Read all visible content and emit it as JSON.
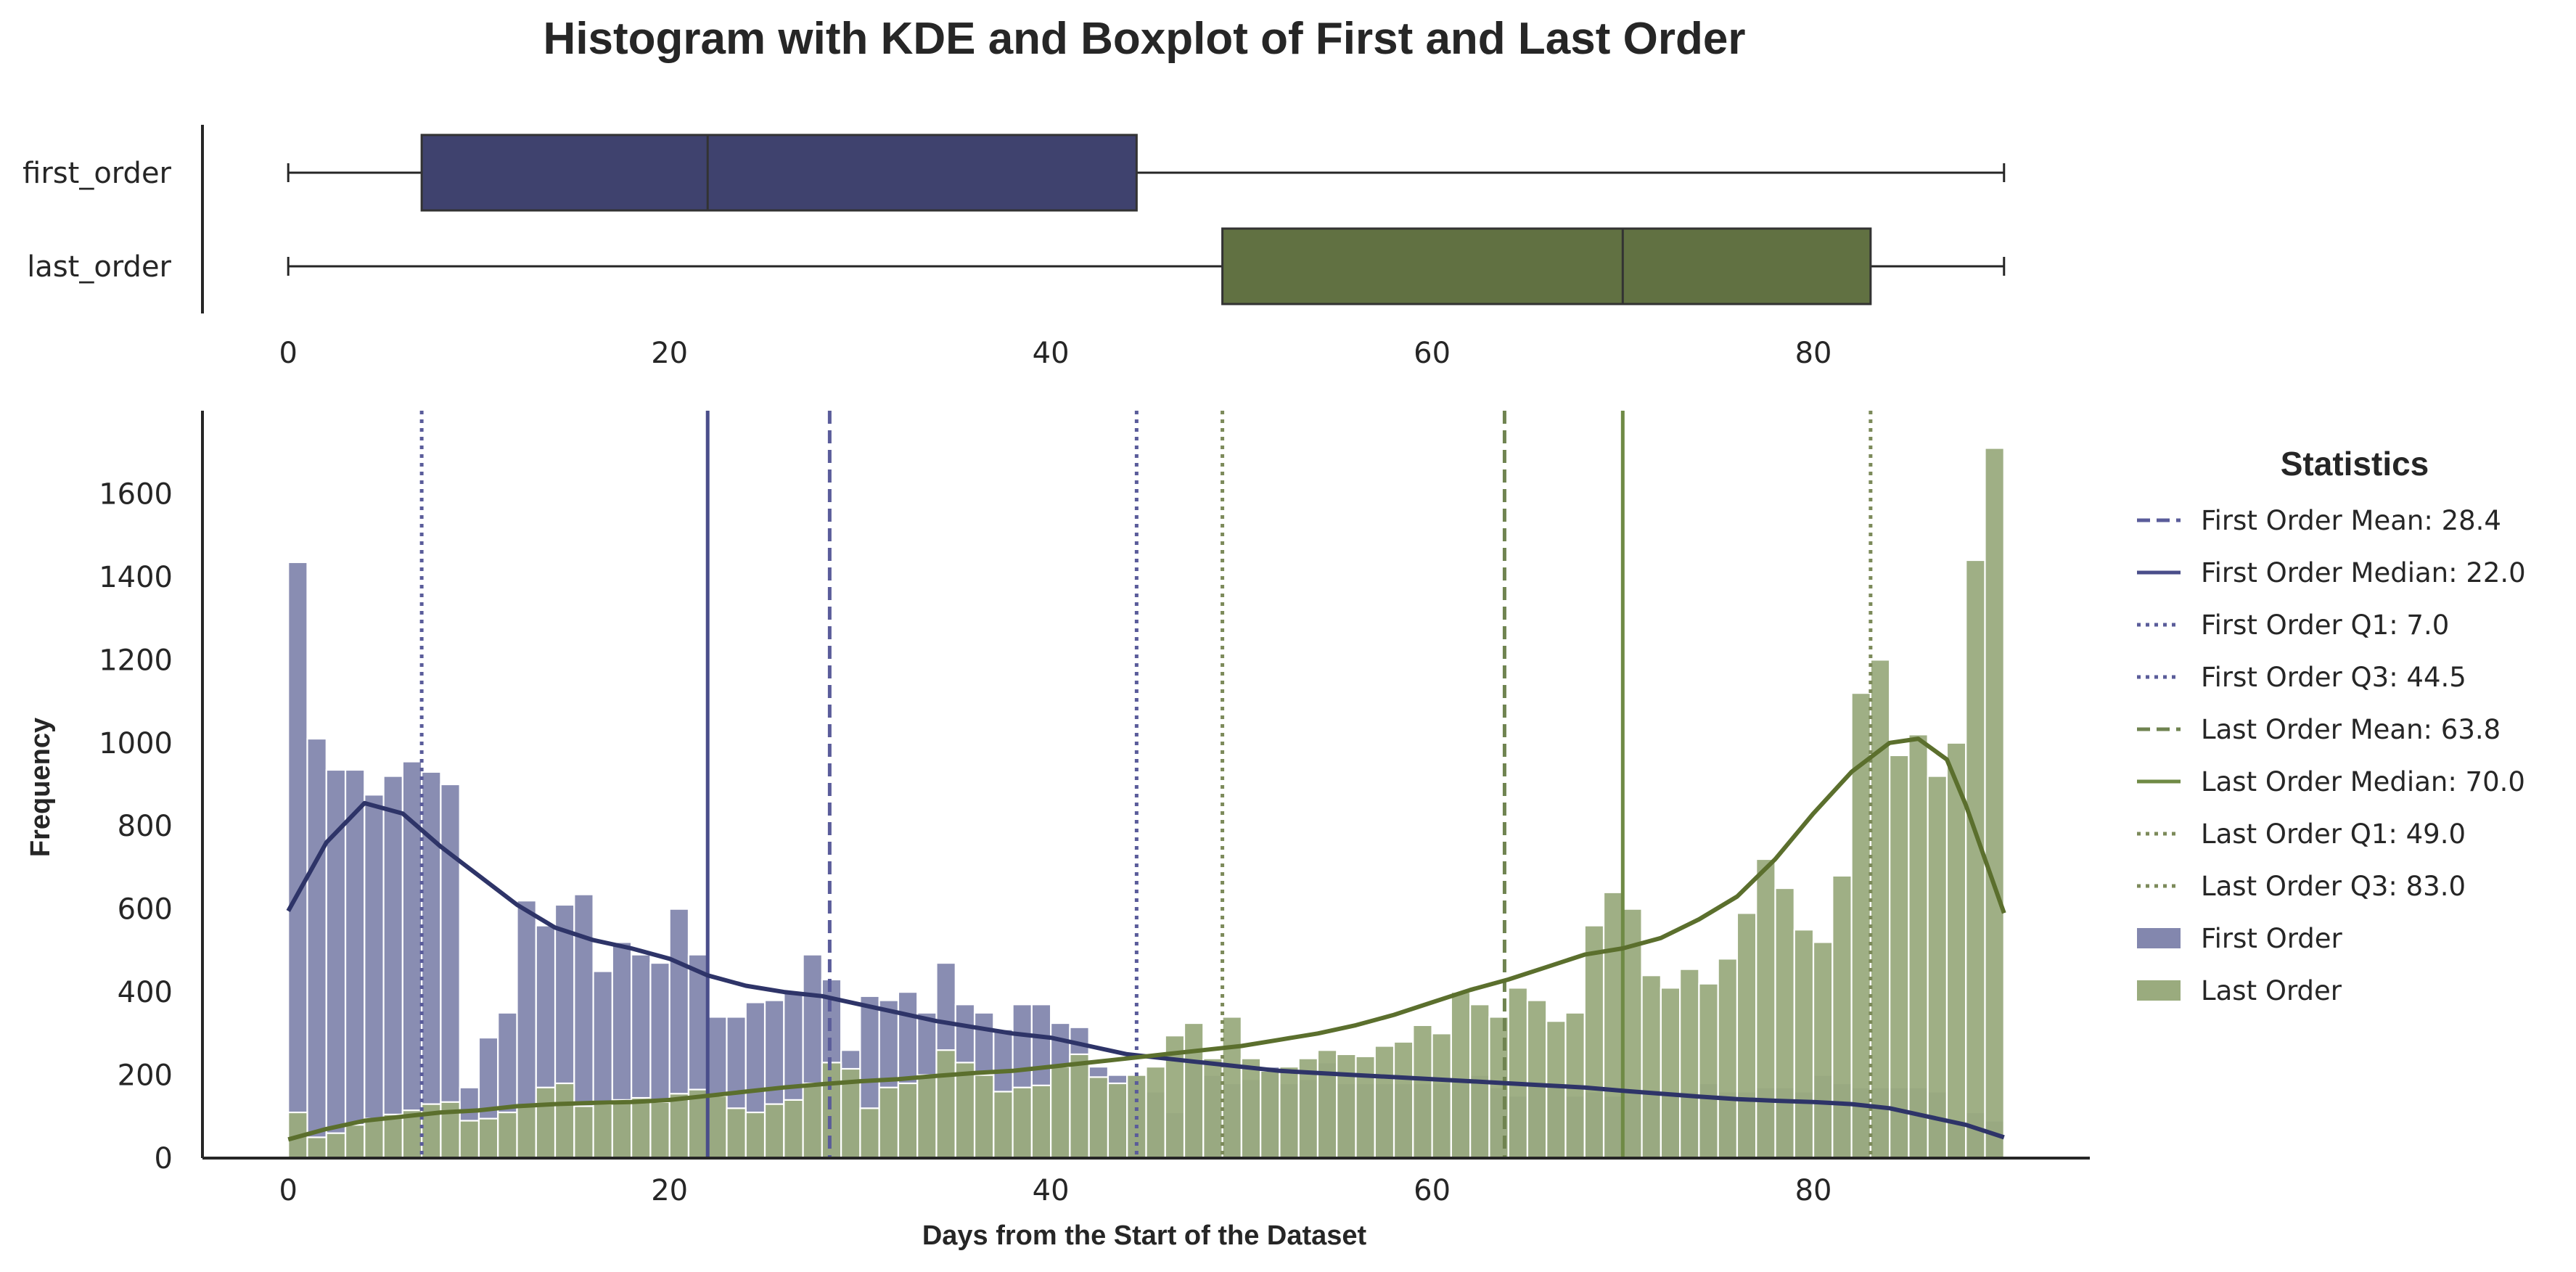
{
  "chart_data": {
    "type": "histogram",
    "title": "Histogram with KDE and Boxplot of First and Last Order",
    "xlabel": "Days from the Start of the Dataset",
    "ylabel": "Frequency",
    "xlim": [
      -4.5,
      94.5
    ],
    "ylim": [
      0,
      1800
    ],
    "x_ticks": [
      0,
      20,
      40,
      60,
      80
    ],
    "y_ticks": [
      0,
      200,
      400,
      600,
      800,
      1000,
      1200,
      1400,
      1600
    ],
    "boxplot_categories": [
      "first_order",
      "last_order"
    ],
    "bin_width": 1,
    "bin_start": 0,
    "series": [
      {
        "name": "First Order",
        "color": "#8387ae",
        "kde_color": "#2e3468",
        "counts": [
          1435,
          1010,
          935,
          935,
          875,
          920,
          955,
          930,
          900,
          170,
          290,
          350,
          620,
          560,
          610,
          635,
          450,
          520,
          490,
          470,
          600,
          490,
          340,
          340,
          375,
          380,
          400,
          490,
          430,
          260,
          390,
          380,
          400,
          350,
          470,
          370,
          350,
          310,
          370,
          370,
          325,
          315,
          220,
          200,
          200,
          160,
          110,
          230,
          200,
          180,
          190,
          220,
          180,
          190,
          230,
          180,
          180,
          180,
          180,
          180,
          180,
          190,
          200,
          170,
          150,
          180,
          170,
          150,
          160,
          150,
          160,
          165,
          160,
          160,
          180,
          160,
          160,
          170,
          170,
          160,
          200,
          180,
          170,
          170,
          170,
          170,
          160,
          90,
          110,
          90
        ],
        "kde": [
          [
            0,
            595
          ],
          [
            2,
            760
          ],
          [
            4,
            855
          ],
          [
            6,
            830
          ],
          [
            8,
            750
          ],
          [
            10,
            680
          ],
          [
            12,
            610
          ],
          [
            14,
            555
          ],
          [
            16,
            525
          ],
          [
            18,
            505
          ],
          [
            20,
            480
          ],
          [
            22,
            440
          ],
          [
            24,
            415
          ],
          [
            26,
            400
          ],
          [
            28,
            390
          ],
          [
            30,
            370
          ],
          [
            32,
            350
          ],
          [
            34,
            330
          ],
          [
            36,
            315
          ],
          [
            38,
            300
          ],
          [
            40,
            290
          ],
          [
            42,
            270
          ],
          [
            44,
            250
          ],
          [
            46,
            240
          ],
          [
            48,
            230
          ],
          [
            50,
            220
          ],
          [
            52,
            210
          ],
          [
            54,
            205
          ],
          [
            56,
            200
          ],
          [
            58,
            195
          ],
          [
            60,
            190
          ],
          [
            62,
            185
          ],
          [
            64,
            180
          ],
          [
            66,
            175
          ],
          [
            68,
            170
          ],
          [
            70,
            162
          ],
          [
            72,
            155
          ],
          [
            74,
            148
          ],
          [
            76,
            142
          ],
          [
            78,
            138
          ],
          [
            80,
            135
          ],
          [
            82,
            130
          ],
          [
            84,
            120
          ],
          [
            86,
            100
          ],
          [
            88,
            80
          ],
          [
            90,
            50
          ]
        ],
        "box": {
          "min": 0,
          "q1": 7.0,
          "median": 22.0,
          "q3": 44.5,
          "max": 90
        },
        "stats": {
          "mean": 28.4,
          "median": 22.0,
          "q1": 7.0,
          "q3": 44.5
        }
      },
      {
        "name": "Last Order",
        "color": "#9aab7e",
        "kde_color": "#5b6f2d",
        "counts": [
          110,
          50,
          60,
          80,
          95,
          105,
          115,
          130,
          135,
          90,
          95,
          110,
          125,
          170,
          180,
          125,
          130,
          140,
          145,
          135,
          155,
          165,
          150,
          120,
          110,
          130,
          140,
          180,
          230,
          215,
          120,
          170,
          180,
          200,
          260,
          230,
          200,
          160,
          170,
          175,
          220,
          250,
          195,
          180,
          200,
          220,
          295,
          325,
          240,
          340,
          240,
          210,
          220,
          240,
          260,
          250,
          245,
          270,
          280,
          320,
          300,
          400,
          370,
          340,
          410,
          380,
          330,
          350,
          560,
          640,
          600,
          440,
          410,
          455,
          420,
          480,
          590,
          720,
          650,
          550,
          520,
          680,
          1120,
          1200,
          970,
          1020,
          920,
          1000,
          1440,
          1710
        ],
        "kde": [
          [
            0,
            45
          ],
          [
            2,
            70
          ],
          [
            4,
            90
          ],
          [
            6,
            100
          ],
          [
            8,
            110
          ],
          [
            10,
            115
          ],
          [
            12,
            125
          ],
          [
            14,
            130
          ],
          [
            16,
            133
          ],
          [
            18,
            135
          ],
          [
            20,
            140
          ],
          [
            22,
            150
          ],
          [
            24,
            160
          ],
          [
            26,
            170
          ],
          [
            28,
            178
          ],
          [
            30,
            185
          ],
          [
            32,
            190
          ],
          [
            34,
            198
          ],
          [
            36,
            205
          ],
          [
            38,
            210
          ],
          [
            40,
            220
          ],
          [
            42,
            230
          ],
          [
            44,
            240
          ],
          [
            46,
            250
          ],
          [
            48,
            260
          ],
          [
            50,
            270
          ],
          [
            52,
            285
          ],
          [
            54,
            300
          ],
          [
            56,
            320
          ],
          [
            58,
            345
          ],
          [
            60,
            375
          ],
          [
            62,
            405
          ],
          [
            64,
            430
          ],
          [
            66,
            460
          ],
          [
            68,
            490
          ],
          [
            70,
            505
          ],
          [
            72,
            530
          ],
          [
            74,
            575
          ],
          [
            76,
            630
          ],
          [
            78,
            720
          ],
          [
            80,
            830
          ],
          [
            82,
            930
          ],
          [
            84,
            1000
          ],
          [
            85.5,
            1010
          ],
          [
            87,
            960
          ],
          [
            88,
            850
          ],
          [
            89,
            720
          ],
          [
            90,
            590
          ]
        ],
        "box": {
          "min": 0,
          "q1": 49.0,
          "median": 70.0,
          "q3": 83.0,
          "max": 90
        },
        "stats": {
          "mean": 63.8,
          "median": 70.0,
          "q1": 49.0,
          "q3": 83.0
        }
      }
    ],
    "box_colors": {
      "first_order": "#3f426e",
      "last_order": "#617142"
    },
    "stat_lines": [
      {
        "series": "first",
        "stat": "mean",
        "value": 28.4,
        "style": "dashed",
        "color": "#5a5c9a"
      },
      {
        "series": "first",
        "stat": "median",
        "value": 22.0,
        "style": "solid",
        "color": "#4a4e8a"
      },
      {
        "series": "first",
        "stat": "q1",
        "value": 7.0,
        "style": "dotted",
        "color": "#5a5c9a"
      },
      {
        "series": "first",
        "stat": "q3",
        "value": 44.5,
        "style": "dotted",
        "color": "#5a5c9a"
      },
      {
        "series": "last",
        "stat": "mean",
        "value": 63.8,
        "style": "dashed",
        "color": "#6f8350"
      },
      {
        "series": "last",
        "stat": "median",
        "value": 70.0,
        "style": "solid",
        "color": "#6f8a45"
      },
      {
        "series": "last",
        "stat": "q1",
        "value": 49.0,
        "style": "dotted",
        "color": "#7c8a5a"
      },
      {
        "series": "last",
        "stat": "q3",
        "value": 83.0,
        "style": "dotted",
        "color": "#7c8a5a"
      }
    ],
    "legend": {
      "title": "Statistics",
      "placement": "right",
      "entries": [
        {
          "label": "First Order Mean: 28.4",
          "kind": "line",
          "style": "dashed",
          "color": "#5a5c9a"
        },
        {
          "label": "First Order Median: 22.0",
          "kind": "line",
          "style": "solid",
          "color": "#4a4e8a"
        },
        {
          "label": "First Order Q1: 7.0",
          "kind": "line",
          "style": "dotted",
          "color": "#5a5c9a"
        },
        {
          "label": "First Order Q3: 44.5",
          "kind": "line",
          "style": "dotted",
          "color": "#5a5c9a"
        },
        {
          "label": "Last Order Mean: 63.8",
          "kind": "line",
          "style": "dashed",
          "color": "#6f8350"
        },
        {
          "label": "Last Order Median: 70.0",
          "kind": "line",
          "style": "solid",
          "color": "#6f8a45"
        },
        {
          "label": "Last Order Q1: 49.0",
          "kind": "line",
          "style": "dotted",
          "color": "#7c8a5a"
        },
        {
          "label": "Last Order Q3: 83.0",
          "kind": "line",
          "style": "dotted",
          "color": "#7c8a5a"
        },
        {
          "label": "First Order",
          "kind": "patch",
          "color": "#8387ae"
        },
        {
          "label": "Last Order",
          "kind": "patch",
          "color": "#9aab7e"
        }
      ]
    }
  }
}
